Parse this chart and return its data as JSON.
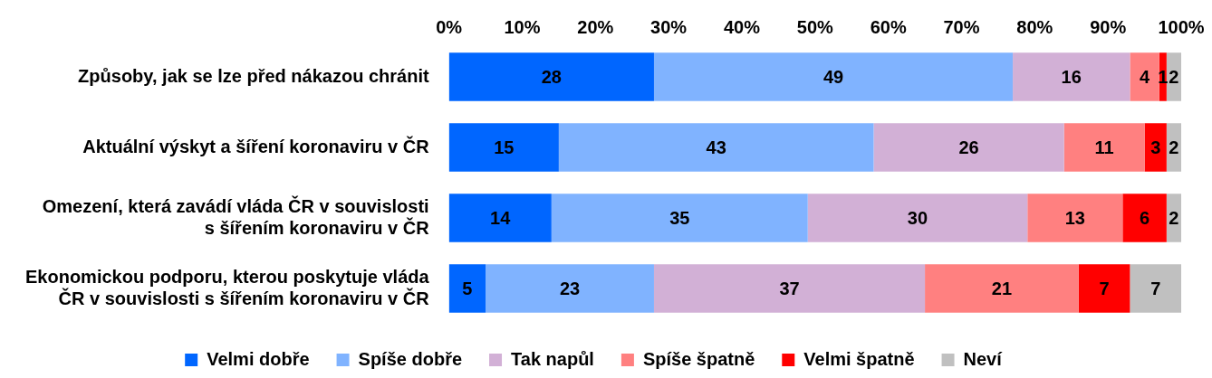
{
  "chart_data": {
    "type": "bar",
    "orientation": "horizontal",
    "stacked": true,
    "data_labels": true,
    "legend": "bottom",
    "grid": false,
    "categories": [
      "Způsoby, jak se lze před nákazou chránit",
      "Aktuální výskyt a šíření koronaviru v ČR",
      "Omezení, která zavádí vláda ČR v souvislosti s šířením koronaviru v ČR",
      "Ekonomickou podporu, kterou poskytuje vláda ČR v souvislosti s šířením koronaviru v ČR"
    ],
    "series": [
      {
        "name": "Velmi dobře",
        "color": "#0066ff",
        "values": [
          28,
          15,
          14,
          5
        ]
      },
      {
        "name": "Spíše dobře",
        "color": "#80b3ff",
        "values": [
          49,
          43,
          35,
          23
        ]
      },
      {
        "name": "Tak napůl",
        "color": "#d2b0d6",
        "values": [
          16,
          26,
          30,
          37
        ]
      },
      {
        "name": "Spíše špatně",
        "color": "#ff8080",
        "values": [
          4,
          11,
          13,
          21
        ]
      },
      {
        "name": "Velmi špatně",
        "color": "#ff0000",
        "values": [
          1,
          3,
          6,
          7
        ]
      },
      {
        "name": "Neví",
        "color": "#c0c0c0",
        "values": [
          2,
          2,
          2,
          7
        ]
      }
    ],
    "xlim": [
      0,
      100
    ],
    "xticks": [
      {
        "value": 0,
        "label": "0%"
      },
      {
        "value": 10,
        "label": "10%"
      },
      {
        "value": 20,
        "label": "20%"
      },
      {
        "value": 30,
        "label": "30%"
      },
      {
        "value": 40,
        "label": "40%"
      },
      {
        "value": 50,
        "label": "50%"
      },
      {
        "value": 60,
        "label": "60%"
      },
      {
        "value": 70,
        "label": "70%"
      },
      {
        "value": 80,
        "label": "80%"
      },
      {
        "value": 90,
        "label": "90%"
      },
      {
        "value": 100,
        "label": "100%"
      }
    ]
  }
}
